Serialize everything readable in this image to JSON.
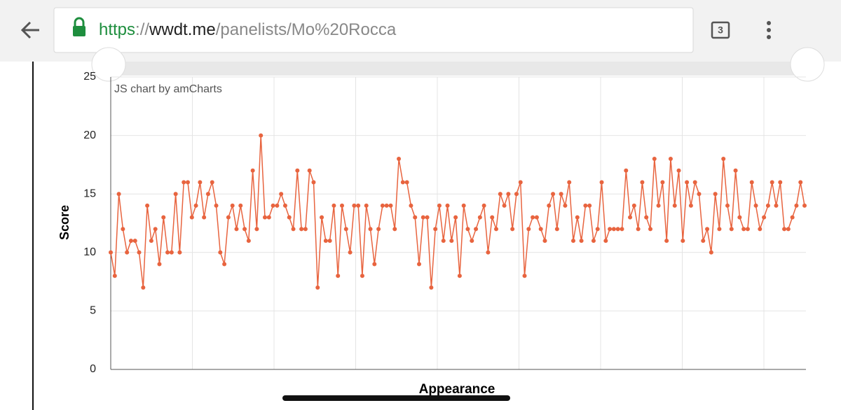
{
  "browser": {
    "url": {
      "scheme": "https",
      "separator": "://",
      "host": "wwdt.me",
      "path": "/panelists/Mo%20Rocca"
    },
    "tab_count": "3"
  },
  "chart_data": {
    "type": "line",
    "credit": "JS chart by amCharts",
    "x_label": "Appearance",
    "y_label": "Score",
    "color": "#e8643f",
    "grid": true,
    "ylim": [
      0,
      25
    ],
    "yticks": [
      0,
      5,
      10,
      15,
      20,
      25
    ],
    "values": [
      10,
      8,
      15,
      12,
      10,
      11,
      11,
      10,
      7,
      14,
      11,
      12,
      9,
      13,
      10,
      10,
      15,
      10,
      16,
      16,
      13,
      14,
      16,
      13,
      15,
      16,
      14,
      10,
      9,
      13,
      14,
      12,
      14,
      12,
      11,
      17,
      12,
      20,
      13,
      13,
      14,
      14,
      15,
      14,
      13,
      12,
      17,
      12,
      12,
      17,
      16,
      7,
      13,
      11,
      11,
      14,
      8,
      14,
      12,
      10,
      14,
      14,
      8,
      14,
      12,
      9,
      12,
      14,
      14,
      14,
      12,
      18,
      16,
      16,
      14,
      13,
      9,
      13,
      13,
      7,
      12,
      14,
      11,
      14,
      11,
      13,
      8,
      14,
      12,
      11,
      12,
      13,
      14,
      10,
      13,
      12,
      15,
      14,
      15,
      12,
      15,
      16,
      8,
      12,
      13,
      13,
      12,
      11,
      14,
      15,
      12,
      15,
      14,
      16,
      11,
      13,
      11,
      14,
      14,
      11,
      12,
      16,
      11,
      12,
      12,
      12,
      12,
      17,
      13,
      14,
      12,
      16,
      13,
      12,
      18,
      14,
      16,
      11,
      18,
      14,
      17,
      11,
      16,
      14,
      16,
      15,
      11,
      12,
      10,
      15,
      12,
      18,
      14,
      12,
      17,
      13,
      12,
      12,
      16,
      14,
      12,
      13,
      14,
      16,
      14,
      16,
      12,
      12,
      13,
      14,
      16,
      14
    ]
  }
}
